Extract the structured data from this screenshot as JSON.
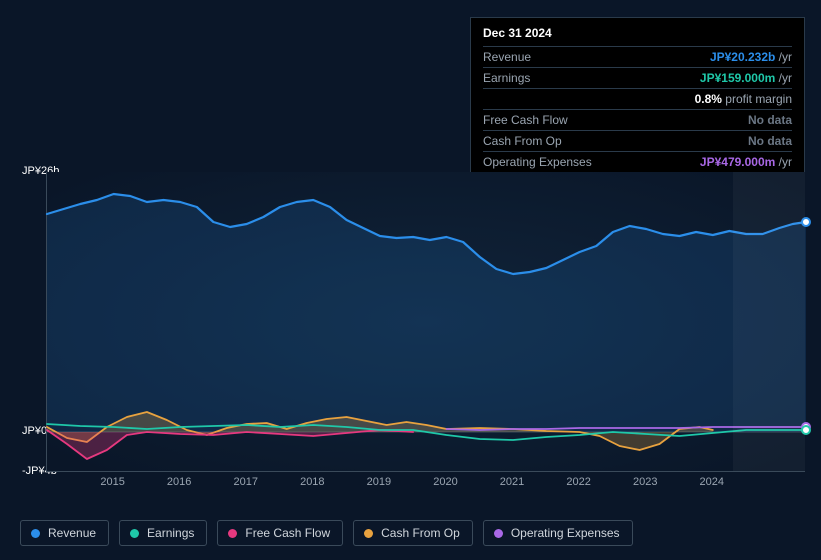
{
  "tooltip": {
    "date": "Dec 31 2024",
    "rows": [
      {
        "label": "Revenue",
        "value": "JP¥20.232b",
        "suffix": " /yr",
        "color": "#2b8eea"
      },
      {
        "label": "Earnings",
        "value": "JP¥159.000m",
        "suffix": " /yr",
        "color": "#1fc8a9"
      },
      {
        "label": "",
        "value": "0.8%",
        "suffix": " profit margin",
        "color": "#ffffff"
      },
      {
        "label": "Free Cash Flow",
        "value": "No data",
        "suffix": "",
        "color": "#6b7785"
      },
      {
        "label": "Cash From Op",
        "value": "No data",
        "suffix": "",
        "color": "#6b7785"
      },
      {
        "label": "Operating Expenses",
        "value": "JP¥479.000m",
        "suffix": " /yr",
        "color": "#a968e6"
      }
    ]
  },
  "chart": {
    "type": "line",
    "ylim": [
      -4,
      26
    ],
    "ylabels": [
      {
        "v": 26,
        "text": "JP¥26b"
      },
      {
        "v": 0,
        "text": "JP¥0"
      },
      {
        "v": -4,
        "text": "-JP¥4b"
      }
    ],
    "xYears": [
      2015,
      2016,
      2017,
      2018,
      2019,
      2020,
      2021,
      2022,
      2023,
      2024
    ],
    "xRange": [
      2014.0,
      2025.4
    ],
    "futureStart": 2024.32,
    "colors": {
      "background": "#0a1628",
      "axis": "#3a4a5a",
      "text": "#9aa5b1"
    },
    "series": {
      "revenue": {
        "color": "#2b8eea",
        "width": 2.2,
        "fill": "rgba(43,142,234,0.15)",
        "points": [
          [
            2014.0,
            21.8
          ],
          [
            2014.25,
            22.3
          ],
          [
            2014.5,
            22.8
          ],
          [
            2014.75,
            23.2
          ],
          [
            2015.0,
            23.8
          ],
          [
            2015.25,
            23.6
          ],
          [
            2015.5,
            23.0
          ],
          [
            2015.75,
            23.2
          ],
          [
            2016.0,
            23.0
          ],
          [
            2016.25,
            22.5
          ],
          [
            2016.5,
            21.0
          ],
          [
            2016.75,
            20.5
          ],
          [
            2017.0,
            20.8
          ],
          [
            2017.25,
            21.5
          ],
          [
            2017.5,
            22.5
          ],
          [
            2017.75,
            23.0
          ],
          [
            2018.0,
            23.2
          ],
          [
            2018.25,
            22.5
          ],
          [
            2018.5,
            21.2
          ],
          [
            2018.75,
            20.4
          ],
          [
            2019.0,
            19.6
          ],
          [
            2019.25,
            19.4
          ],
          [
            2019.5,
            19.5
          ],
          [
            2019.75,
            19.2
          ],
          [
            2020.0,
            19.5
          ],
          [
            2020.25,
            19.0
          ],
          [
            2020.5,
            17.5
          ],
          [
            2020.75,
            16.3
          ],
          [
            2021.0,
            15.8
          ],
          [
            2021.25,
            16.0
          ],
          [
            2021.5,
            16.4
          ],
          [
            2021.75,
            17.2
          ],
          [
            2022.0,
            18.0
          ],
          [
            2022.25,
            18.6
          ],
          [
            2022.5,
            20.0
          ],
          [
            2022.75,
            20.6
          ],
          [
            2023.0,
            20.3
          ],
          [
            2023.25,
            19.8
          ],
          [
            2023.5,
            19.6
          ],
          [
            2023.75,
            20.0
          ],
          [
            2024.0,
            19.7
          ],
          [
            2024.25,
            20.1
          ],
          [
            2024.5,
            19.8
          ],
          [
            2024.75,
            19.8
          ],
          [
            2025.0,
            20.4
          ],
          [
            2025.2,
            20.8
          ],
          [
            2025.4,
            21.0
          ]
        ]
      },
      "earnings": {
        "color": "#1fc8a9",
        "width": 1.8,
        "fill": "none",
        "points": [
          [
            2014.0,
            0.8
          ],
          [
            2014.5,
            0.6
          ],
          [
            2015.0,
            0.5
          ],
          [
            2015.5,
            0.3
          ],
          [
            2016.0,
            0.5
          ],
          [
            2016.5,
            0.6
          ],
          [
            2017.0,
            0.7
          ],
          [
            2017.5,
            0.5
          ],
          [
            2018.0,
            0.7
          ],
          [
            2018.5,
            0.5
          ],
          [
            2019.0,
            0.2
          ],
          [
            2019.5,
            0.2
          ],
          [
            2020.0,
            -0.3
          ],
          [
            2020.5,
            -0.7
          ],
          [
            2021.0,
            -0.8
          ],
          [
            2021.5,
            -0.5
          ],
          [
            2022.0,
            -0.3
          ],
          [
            2022.5,
            0.0
          ],
          [
            2023.0,
            -0.2
          ],
          [
            2023.5,
            -0.4
          ],
          [
            2024.0,
            -0.1
          ],
          [
            2024.5,
            0.2
          ],
          [
            2025.0,
            0.2
          ],
          [
            2025.4,
            0.2
          ]
        ]
      },
      "fcf": {
        "color": "#e6397f",
        "width": 1.8,
        "fill": "rgba(230,57,127,0.3)",
        "points": [
          [
            2014.0,
            0.2
          ],
          [
            2014.3,
            -1.2
          ],
          [
            2014.6,
            -2.7
          ],
          [
            2014.9,
            -1.8
          ],
          [
            2015.2,
            -0.3
          ],
          [
            2015.5,
            0.0
          ],
          [
            2016.0,
            -0.2
          ],
          [
            2016.5,
            -0.3
          ],
          [
            2017.0,
            0.0
          ],
          [
            2017.5,
            -0.2
          ],
          [
            2018.0,
            -0.4
          ],
          [
            2018.5,
            -0.1
          ],
          [
            2019.0,
            0.2
          ],
          [
            2019.5,
            0.0
          ]
        ]
      },
      "cfo": {
        "color": "#e8a23f",
        "width": 1.8,
        "fill": "rgba(232,162,63,0.25)",
        "points": [
          [
            2014.0,
            0.5
          ],
          [
            2014.3,
            -0.6
          ],
          [
            2014.6,
            -1.0
          ],
          [
            2014.9,
            0.5
          ],
          [
            2015.2,
            1.5
          ],
          [
            2015.5,
            2.0
          ],
          [
            2015.8,
            1.2
          ],
          [
            2016.1,
            0.2
          ],
          [
            2016.4,
            -0.3
          ],
          [
            2016.7,
            0.4
          ],
          [
            2017.0,
            0.8
          ],
          [
            2017.3,
            0.9
          ],
          [
            2017.6,
            0.3
          ],
          [
            2017.9,
            0.9
          ],
          [
            2018.2,
            1.3
          ],
          [
            2018.5,
            1.5
          ],
          [
            2018.8,
            1.1
          ],
          [
            2019.1,
            0.7
          ],
          [
            2019.4,
            1.0
          ],
          [
            2019.7,
            0.7
          ],
          [
            2020.0,
            0.3
          ],
          [
            2020.5,
            0.4
          ],
          [
            2021.0,
            0.3
          ],
          [
            2021.5,
            0.1
          ],
          [
            2022.0,
            0.0
          ],
          [
            2022.3,
            -0.4
          ],
          [
            2022.6,
            -1.4
          ],
          [
            2022.9,
            -1.8
          ],
          [
            2023.2,
            -1.2
          ],
          [
            2023.5,
            0.3
          ],
          [
            2023.8,
            0.5
          ],
          [
            2024.0,
            0.2
          ]
        ]
      },
      "opex": {
        "color": "#a968e6",
        "width": 1.8,
        "fill": "none",
        "points": [
          [
            2020.0,
            0.3
          ],
          [
            2020.5,
            0.2
          ],
          [
            2021.0,
            0.3
          ],
          [
            2021.5,
            0.3
          ],
          [
            2022.0,
            0.4
          ],
          [
            2022.5,
            0.4
          ],
          [
            2023.0,
            0.4
          ],
          [
            2023.5,
            0.4
          ],
          [
            2024.0,
            0.5
          ],
          [
            2024.5,
            0.5
          ],
          [
            2025.0,
            0.5
          ],
          [
            2025.4,
            0.5
          ]
        ]
      }
    }
  },
  "legend": [
    {
      "label": "Revenue",
      "color": "#2b8eea"
    },
    {
      "label": "Earnings",
      "color": "#1fc8a9"
    },
    {
      "label": "Free Cash Flow",
      "color": "#e6397f"
    },
    {
      "label": "Cash From Op",
      "color": "#e8a23f"
    },
    {
      "label": "Operating Expenses",
      "color": "#a968e6"
    }
  ]
}
